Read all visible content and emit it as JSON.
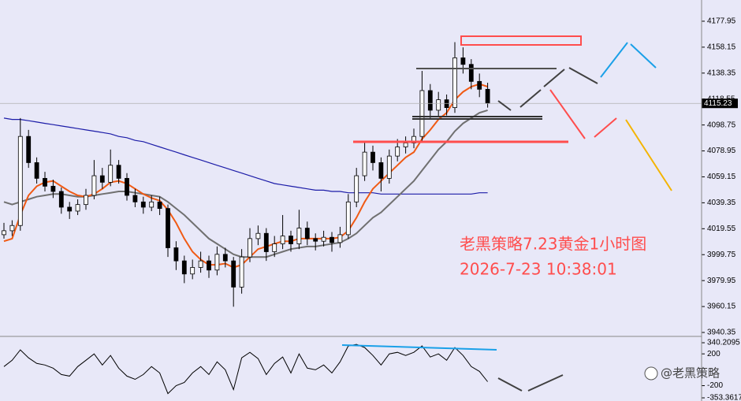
{
  "chart_data": [
    {
      "type": "candlestick",
      "title": "老黑策略7.23黄金1小时图",
      "subtitle": "2026-7-23 10:38:01",
      "ylim": [
        3937.35,
        4194.15
      ],
      "yticks": [
        4177.95,
        4158.15,
        4138.35,
        4118.55,
        4098.75,
        4078.95,
        4059.15,
        4039.35,
        4019.55,
        3999.75,
        3979.95,
        3960.15,
        3940.35
      ],
      "last_price": 4115.23,
      "up_color": "#ffffff",
      "down_color": "#000000",
      "open": [
        4015,
        4018,
        4022,
        4090,
        4070,
        4058,
        4052,
        4048,
        4036,
        4033,
        4038,
        4045,
        4060,
        4055,
        4068,
        4058,
        4045,
        4040,
        4036,
        4040,
        4035,
        4005,
        3995,
        3985,
        3990,
        3995,
        3988,
        4000,
        3995,
        3975,
        3998,
        4012,
        4016,
        4002,
        4008,
        4014,
        4008,
        4020,
        4012,
        4010,
        4013,
        4009,
        4015,
        4040,
        4060,
        4078,
        4070,
        4058,
        4075,
        4082,
        4085,
        4090,
        4125,
        4110,
        4118,
        4112,
        4150,
        4145,
        4132,
        4126
      ],
      "high": [
        4024,
        4026,
        4104,
        4095,
        4074,
        4063,
        4057,
        4051,
        4040,
        4042,
        4050,
        4072,
        4066,
        4080,
        4072,
        4062,
        4050,
        4044,
        4045,
        4044,
        4038,
        4010,
        3999,
        3996,
        4002,
        3999,
        4006,
        4005,
        3998,
        4004,
        4020,
        4022,
        4020,
        4014,
        4030,
        4018,
        4034,
        4025,
        4016,
        4018,
        4017,
        4021,
        4046,
        4066,
        4086,
        4083,
        4074,
        4080,
        4088,
        4090,
        4096,
        4140,
        4130,
        4124,
        4122,
        4162,
        4158,
        4149,
        4138,
        4131
      ],
      "low": [
        4012,
        4014,
        4018,
        4066,
        4054,
        4048,
        4043,
        4031,
        4027,
        4030,
        4034,
        4042,
        4050,
        4052,
        4054,
        4041,
        4036,
        4031,
        4033,
        4030,
        3998,
        3988,
        3978,
        3981,
        3986,
        3982,
        3984,
        3990,
        3960,
        3970,
        3994,
        4007,
        3995,
        3998,
        4004,
        4002,
        4004,
        4007,
        4003,
        4006,
        4002,
        4005,
        4012,
        4036,
        4056,
        4064,
        4048,
        4054,
        4071,
        4077,
        4081,
        4086,
        4104,
        4105,
        4106,
        4108,
        4138,
        4126,
        4120,
        4112
      ],
      "close": [
        4018,
        4022,
        4090,
        4070,
        4058,
        4052,
        4048,
        4036,
        4033,
        4038,
        4045,
        4060,
        4055,
        4068,
        4058,
        4045,
        4040,
        4036,
        4040,
        4035,
        4005,
        3995,
        3985,
        3990,
        3995,
        3988,
        4000,
        3995,
        3975,
        3998,
        4012,
        4016,
        4002,
        4008,
        4014,
        4008,
        4020,
        4012,
        4010,
        4013,
        4009,
        4015,
        4040,
        4060,
        4078,
        4070,
        4058,
        4075,
        4082,
        4085,
        4090,
        4125,
        4110,
        4118,
        4112,
        4150,
        4145,
        4132,
        4126,
        4115.23
      ],
      "overlays": [
        {
          "color": "#1c1ca8",
          "values": [
            4104,
            4103,
            4103,
            4102,
            4101,
            4100,
            4099,
            4098,
            4097,
            4096,
            4095,
            4094,
            4093,
            4092,
            4090,
            4089,
            4087,
            4086,
            4084,
            4082,
            4080,
            4078,
            4076,
            4074,
            4072,
            4070,
            4068,
            4066,
            4064,
            4062,
            4060,
            4058,
            4056,
            4054,
            4053,
            4052,
            4051,
            4050,
            4049,
            4049,
            4048,
            4048,
            4047,
            4047,
            4047,
            4047,
            4046,
            4046,
            4046,
            4046,
            4046,
            4046,
            4046,
            4046,
            4046,
            4046,
            4046,
            4046,
            4047,
            4047
          ]
        },
        {
          "color": "#707070",
          "values": [
            4040,
            4038,
            4040,
            4042,
            4044,
            4045,
            4046,
            4046,
            4045,
            4044,
            4044,
            4045,
            4046,
            4047,
            4048,
            4048,
            4047,
            4046,
            4045,
            4044,
            4040,
            4035,
            4030,
            4024,
            4018,
            4012,
            4008,
            4004,
            4000,
            3998,
            3998,
            3998,
            3998,
            4000,
            4002,
            4004,
            4005,
            4006,
            4006,
            4007,
            4008,
            4009,
            4012,
            4016,
            4022,
            4028,
            4032,
            4038,
            4044,
            4050,
            4056,
            4064,
            4072,
            4080,
            4086,
            4094,
            4100,
            4104,
            4108,
            4110
          ]
        },
        {
          "color": "#f05a14",
          "values": [
            4010,
            4012,
            4030,
            4045,
            4052,
            4055,
            4056,
            4052,
            4048,
            4045,
            4044,
            4046,
            4050,
            4055,
            4056,
            4054,
            4050,
            4046,
            4043,
            4041,
            4034,
            4024,
            4012,
            4002,
            3996,
            3992,
            3992,
            3993,
            3990,
            3992,
            3998,
            4004,
            4006,
            4008,
            4010,
            4010,
            4012,
            4012,
            4012,
            4012,
            4012,
            4013,
            4018,
            4028,
            4040,
            4050,
            4056,
            4062,
            4068,
            4074,
            4078,
            4088,
            4095,
            4103,
            4108,
            4118,
            4124,
            4128,
            4130,
            4128
          ]
        }
      ]
    },
    {
      "type": "line",
      "color": "#000000",
      "ylim": [
        -393,
        410
      ],
      "yticks": [
        340.2095,
        200,
        -200,
        -353.3617
      ],
      "values": [
        40,
        120,
        250,
        150,
        80,
        60,
        20,
        -60,
        -80,
        40,
        120,
        200,
        60,
        180,
        20,
        -80,
        -120,
        -60,
        40,
        -40,
        -300,
        -200,
        -160,
        -40,
        40,
        -60,
        100,
        0,
        -250,
        150,
        220,
        140,
        -60,
        80,
        160,
        -40,
        200,
        20,
        0,
        60,
        -40,
        100,
        300,
        320,
        280,
        180,
        60,
        200,
        220,
        180,
        220,
        300,
        160,
        200,
        120,
        280,
        180,
        40,
        -20,
        -150
      ]
    }
  ],
  "watermark": "@老黑策略"
}
